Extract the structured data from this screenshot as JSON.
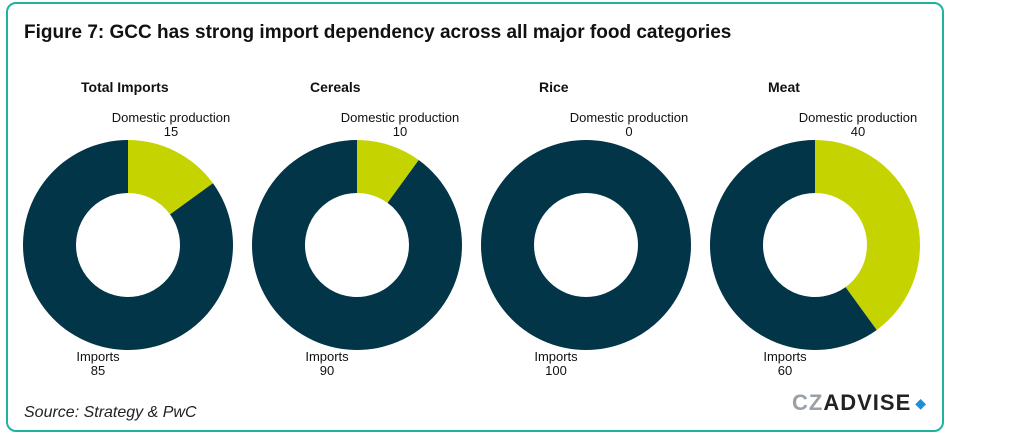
{
  "title": "Figure 7: GCC has strong import dependency across all major food categories",
  "source": "Source: Strategy & PwC",
  "logo": {
    "cz": "CZ",
    "advise": "ADVISE",
    "icon": "diamond-icon"
  },
  "colors": {
    "domestic": "#c5d300",
    "imports": "#023547",
    "border": "#1fb2a0"
  },
  "chart_data": [
    {
      "type": "pie",
      "title": "Total Imports",
      "labels": [
        "Domestic production",
        "Imports"
      ],
      "values": [
        15,
        85
      ]
    },
    {
      "type": "pie",
      "title": "Cereals",
      "labels": [
        "Domestic production",
        "Imports"
      ],
      "values": [
        10,
        90
      ]
    },
    {
      "type": "pie",
      "title": "Rice",
      "labels": [
        "Domestic production",
        "Imports"
      ],
      "values": [
        0,
        100
      ]
    },
    {
      "type": "pie",
      "title": "Meat",
      "labels": [
        "Domestic production",
        "Imports"
      ],
      "values": [
        40,
        60
      ]
    }
  ]
}
